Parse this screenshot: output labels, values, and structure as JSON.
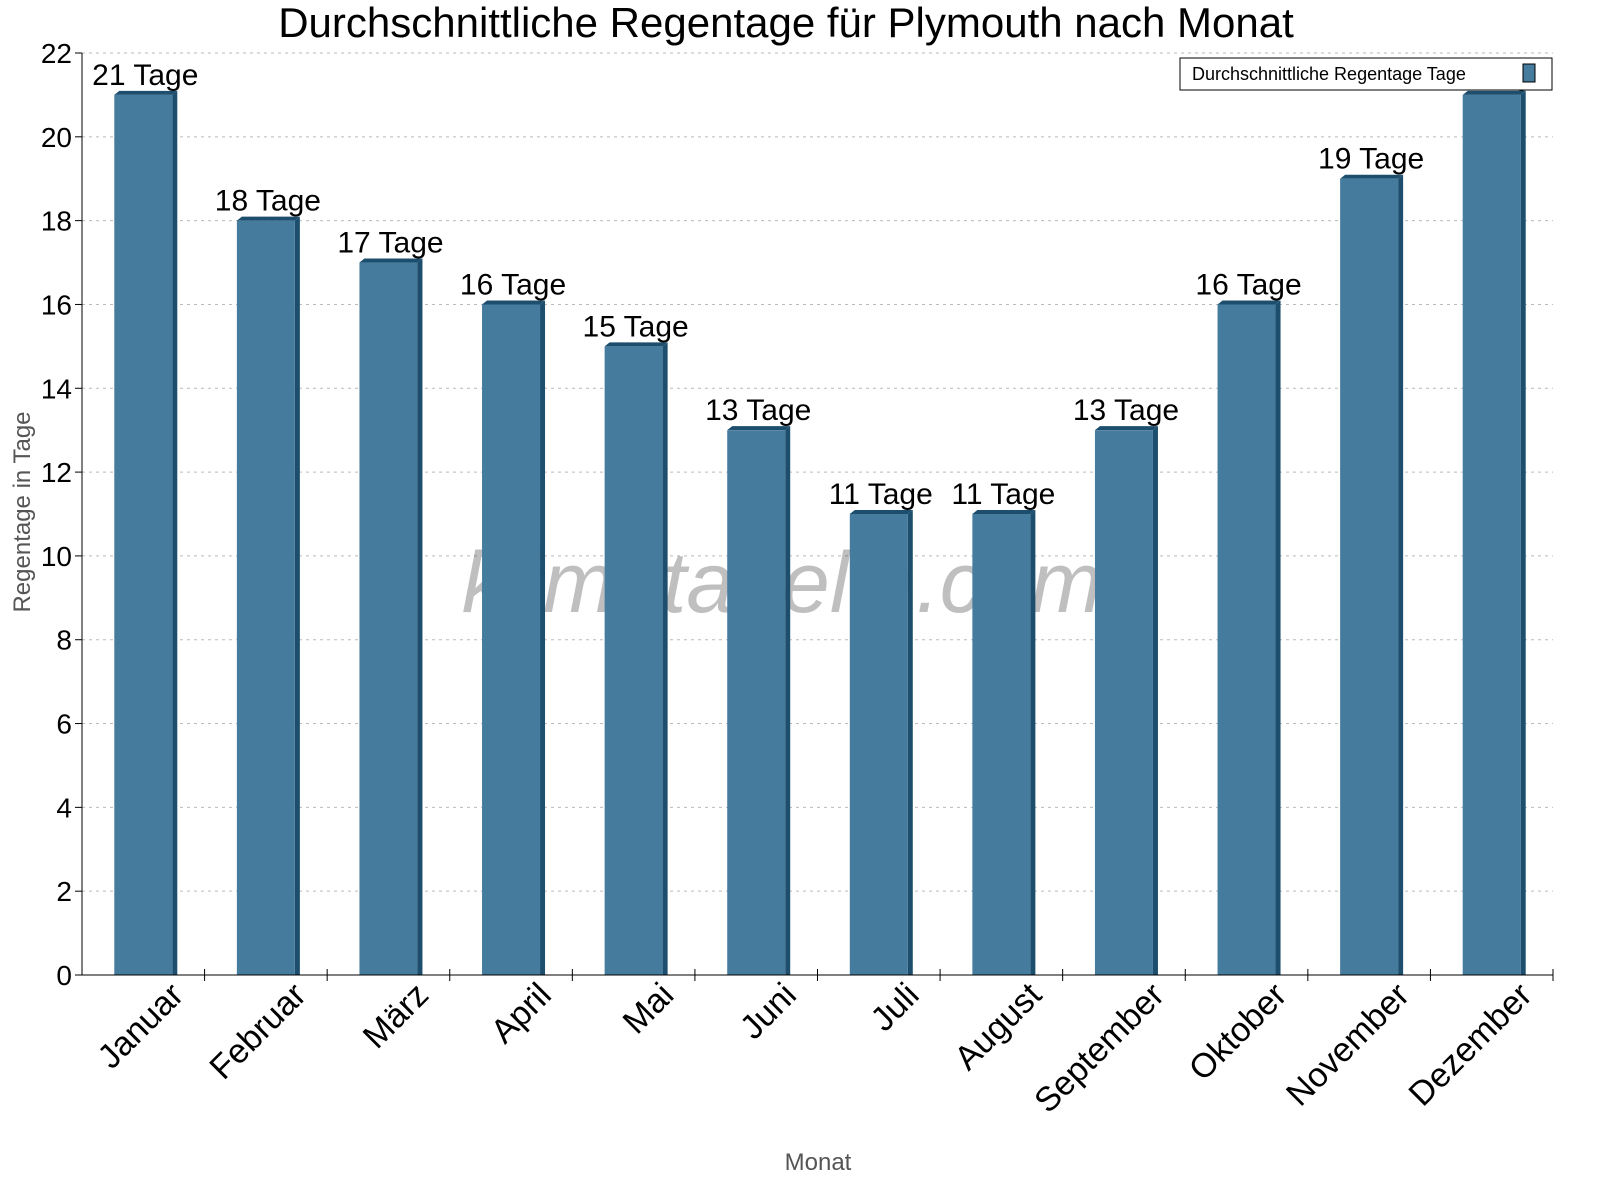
{
  "chart_data": {
    "type": "bar",
    "title": "Durchschnittliche Regentage für Plymouth nach Monat",
    "xlabel": "Monat",
    "ylabel": "Regentage in Tage",
    "ylim": [
      0,
      22
    ],
    "yticks": [
      0,
      2,
      4,
      6,
      8,
      10,
      12,
      14,
      16,
      18,
      20,
      22
    ],
    "grid": true,
    "legend_placement": "top-right",
    "categories": [
      "Januar",
      "Februar",
      "März",
      "April",
      "Mai",
      "Juni",
      "Juli",
      "August",
      "September",
      "Oktober",
      "November",
      "Dezember"
    ],
    "series": [
      {
        "name": "Durchschnittliche Regentage Tage",
        "values": [
          21,
          18,
          17,
          16,
          15,
          13,
          11,
          11,
          13,
          16,
          19,
          21
        ]
      }
    ],
    "data_labels": [
      "21 Tage",
      "18 Tage",
      "17 Tage",
      "16 Tage",
      "15 Tage",
      "13 Tage",
      "11 Tage",
      "11 Tage",
      "13 Tage",
      "16 Tage",
      "19 Tage",
      "21 Tage"
    ],
    "colors": {
      "bar": "#457b9d",
      "bar_side": "#1d4e6e"
    },
    "watermark": "klimatabelle.com"
  }
}
